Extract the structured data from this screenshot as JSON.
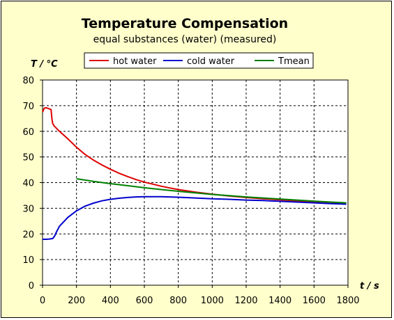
{
  "chart_data": {
    "type": "line",
    "title": "Temperature Compensation",
    "subtitle": "equal substances (water) (measured)",
    "xlabel": "t / s",
    "ylabel": "T / °C",
    "xlim": [
      0,
      1800
    ],
    "ylim": [
      0,
      80
    ],
    "x_ticks": [
      0,
      200,
      400,
      600,
      800,
      1000,
      1200,
      1400,
      1600,
      1800
    ],
    "y_ticks": [
      0,
      10,
      20,
      30,
      40,
      50,
      60,
      70,
      80
    ],
    "grid": true,
    "legend_position": "top-right",
    "series": [
      {
        "name": "hot water",
        "color": "#dd0000",
        "x": [
          0,
          10,
          20,
          30,
          50,
          55,
          60,
          70,
          100,
          150,
          200,
          250,
          300,
          350,
          400,
          450,
          500,
          550,
          600,
          650,
          700,
          750,
          800,
          900,
          1000,
          1100,
          1200,
          1300,
          1400,
          1500,
          1600,
          1700,
          1790
        ],
        "y": [
          67.5,
          69,
          69.2,
          69,
          68.5,
          65,
          63,
          62,
          60,
          57,
          53.8,
          51,
          48.8,
          46.9,
          45.2,
          43.7,
          42.4,
          41.2,
          40.2,
          39.4,
          38.6,
          37.9,
          37.3,
          36.3,
          35.5,
          34.8,
          34.2,
          33.7,
          33.3,
          32.9,
          32.6,
          32.3,
          32.1
        ]
      },
      {
        "name": "cold water",
        "color": "#0000cc",
        "x": [
          0,
          20,
          40,
          60,
          70,
          80,
          100,
          150,
          200,
          250,
          300,
          350,
          400,
          450,
          500,
          550,
          600,
          650,
          700,
          800,
          900,
          1000,
          1100,
          1200,
          1300,
          1400,
          1500,
          1600,
          1700,
          1790
        ],
        "y": [
          17.9,
          17.9,
          18,
          18.2,
          19,
          20.5,
          23,
          26.5,
          29,
          30.8,
          32,
          32.9,
          33.5,
          33.9,
          34.2,
          34.4,
          34.5,
          34.5,
          34.5,
          34.3,
          34,
          33.7,
          33.5,
          33.2,
          33,
          32.7,
          32.4,
          32.1,
          31.8,
          31.6
        ]
      },
      {
        "name": "Tmean",
        "color": "#008000",
        "x": [
          200,
          300,
          400,
          500,
          600,
          700,
          800,
          900,
          1000,
          1100,
          1200,
          1300,
          1400,
          1500,
          1600,
          1700,
          1790
        ],
        "y": [
          41.5,
          40.5,
          39.6,
          38.8,
          38,
          37.3,
          36.6,
          36,
          35.4,
          34.9,
          34.4,
          34,
          33.6,
          33.2,
          32.8,
          32.4,
          32.1
        ]
      }
    ]
  }
}
